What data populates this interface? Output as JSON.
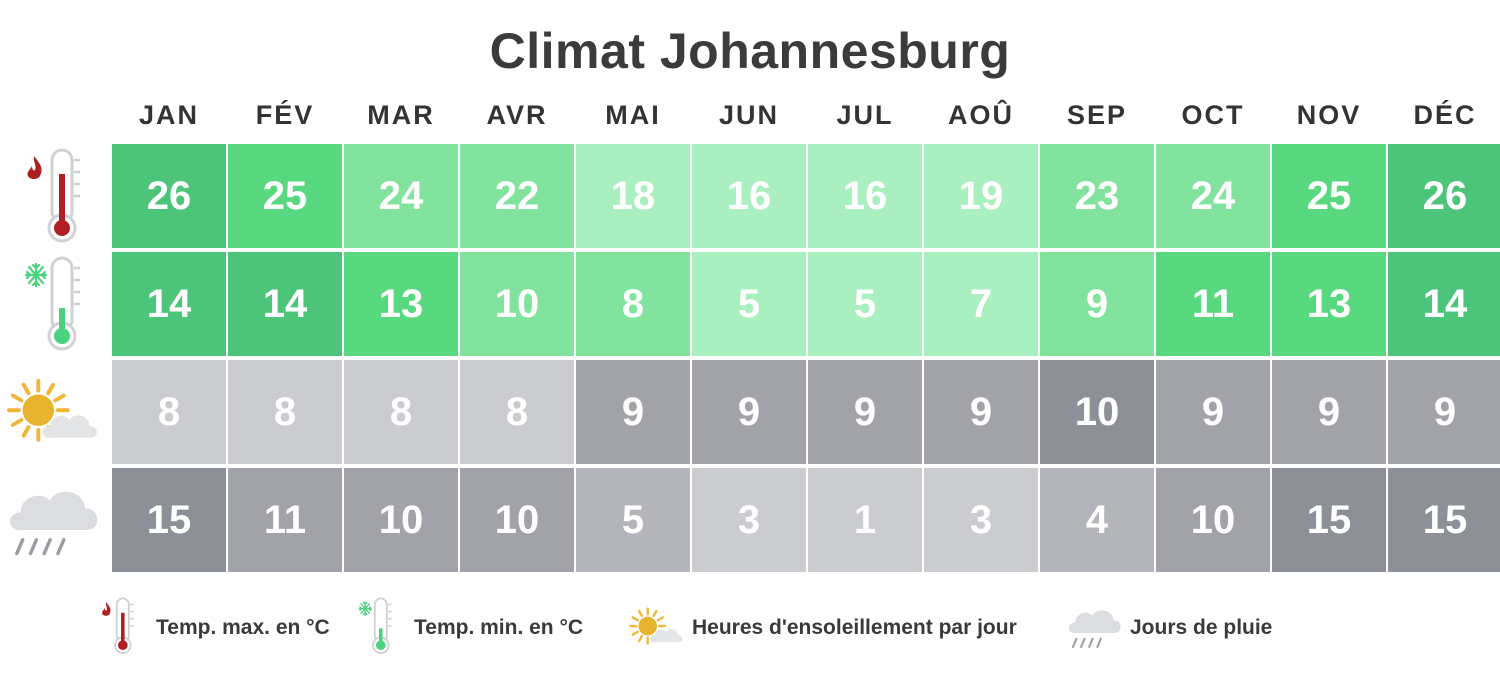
{
  "chart_data": {
    "type": "table",
    "title": "Climat Johannesburg",
    "months": [
      "JAN",
      "FÉV",
      "MAR",
      "AVR",
      "MAI",
      "JUN",
      "JUL",
      "AOÛ",
      "SEP",
      "OCT",
      "NOV",
      "DÉC"
    ],
    "rows": [
      {
        "key": "temp_max",
        "icon": "hot-thermometer-icon",
        "legend": "Temp. max. en °C",
        "values": [
          26,
          25,
          24,
          22,
          18,
          16,
          16,
          19,
          23,
          24,
          25,
          26
        ],
        "colors": [
          "#4cc57a",
          "#58d97f",
          "#82e39e",
          "#82e39e",
          "#a9efbf",
          "#a9efbf",
          "#a9efbf",
          "#a9efbf",
          "#82e39e",
          "#82e39e",
          "#58d97f",
          "#4cc57a"
        ]
      },
      {
        "key": "temp_min",
        "icon": "cold-thermometer-icon",
        "legend": "Temp. min. en °C",
        "values": [
          14,
          14,
          13,
          10,
          8,
          5,
          5,
          7,
          9,
          11,
          13,
          14
        ],
        "colors": [
          "#4cc57a",
          "#4cc57a",
          "#58d97f",
          "#82e39e",
          "#82e39e",
          "#a9efbf",
          "#a9efbf",
          "#a9efbf",
          "#82e39e",
          "#58d97f",
          "#58d97f",
          "#4cc57a"
        ]
      },
      {
        "key": "sunshine",
        "icon": "sun-cloud-icon",
        "legend": "Heures d'ensoleillement par jour",
        "values": [
          8,
          8,
          8,
          8,
          9,
          9,
          9,
          9,
          10,
          9,
          9,
          9
        ],
        "colors": [
          "#caccd0",
          "#caccd0",
          "#caccd0",
          "#caccd0",
          "#a1a3a8",
          "#a1a3a8",
          "#a1a3a8",
          "#a1a3a8",
          "#8e9097",
          "#a1a3a8",
          "#a1a3a8",
          "#a1a3a8"
        ]
      },
      {
        "key": "rain_days",
        "icon": "rain-cloud-icon",
        "legend": "Jours de pluie",
        "values": [
          15,
          11,
          10,
          10,
          5,
          3,
          1,
          3,
          4,
          10,
          15,
          15
        ],
        "colors": [
          "#8e9097",
          "#a1a3a8",
          "#a1a3a8",
          "#a1a3a8",
          "#b3b5ba",
          "#caccd0",
          "#caccd0",
          "#caccd0",
          "#b3b5ba",
          "#a1a3a8",
          "#8e9097",
          "#8e9097"
        ]
      }
    ]
  }
}
